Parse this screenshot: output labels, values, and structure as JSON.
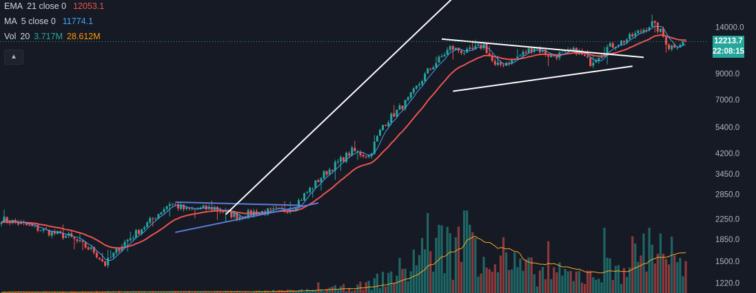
{
  "legend": {
    "ema": {
      "label": "EMA",
      "params": "21 close 0",
      "value": "12053.1",
      "color": "#ef5350"
    },
    "ma": {
      "label": "MA",
      "params": "5 close 0",
      "value": "11774.1",
      "color": "#42a5f5"
    },
    "vol": {
      "label": "Vol",
      "params": "20",
      "value1": "3.717M",
      "value2": "28.612M",
      "color1": "#26a69a",
      "color2": "#ff9800"
    }
  },
  "price_tag": {
    "price": "12213.7",
    "countdown": "22:08:15",
    "color": "#26a69a"
  },
  "colors": {
    "up": "#26a69a",
    "down": "#ef5350",
    "ma": "#42a5f5",
    "ema": "#ef5350",
    "vol_ma": "#ffa726",
    "bg": "#161a25"
  },
  "chart_data": {
    "type": "candlestick",
    "y_scale": "log",
    "y_ticks": [
      "14000.0",
      "12000.0",
      "9000.0",
      "7000.0",
      "5400.0",
      "4200.0",
      "3450.0",
      "2850.0",
      "2250.0",
      "1850.0",
      "1500.0",
      "1220.0"
    ],
    "ylim": [
      1140,
      18500
    ],
    "anchors": [
      [
        0,
        2250
      ],
      [
        10,
        2100
      ],
      [
        16,
        2000
      ],
      [
        24,
        1900
      ],
      [
        33,
        1650
      ],
      [
        37,
        1460
      ],
      [
        43,
        1760
      ],
      [
        52,
        2150
      ],
      [
        60,
        2620
      ],
      [
        66,
        2450
      ],
      [
        76,
        2500
      ],
      [
        84,
        2300
      ],
      [
        90,
        2400
      ],
      [
        100,
        2430
      ],
      [
        104,
        2520
      ],
      [
        115,
        3450
      ],
      [
        125,
        4300
      ],
      [
        131,
        4100
      ],
      [
        136,
        5500
      ],
      [
        145,
        7000
      ],
      [
        152,
        9200
      ],
      [
        160,
        11500
      ],
      [
        166,
        11000
      ],
      [
        172,
        11800
      ],
      [
        176,
        9600
      ],
      [
        182,
        10200
      ],
      [
        190,
        11600
      ],
      [
        196,
        10600
      ],
      [
        205,
        11200
      ],
      [
        210,
        10000
      ],
      [
        216,
        11500
      ],
      [
        222,
        12300
      ],
      [
        228,
        13500
      ],
      [
        232,
        14500
      ],
      [
        235,
        13400
      ],
      [
        238,
        11600
      ],
      [
        244,
        12200
      ]
    ],
    "volume_profile": [
      [
        0,
        0.004
      ],
      [
        30,
        0.005
      ],
      [
        60,
        0.006
      ],
      [
        90,
        0.007
      ],
      [
        110,
        0.012
      ],
      [
        130,
        0.035
      ],
      [
        145,
        0.12
      ],
      [
        152,
        0.25
      ],
      [
        160,
        0.2
      ],
      [
        168,
        0.3
      ],
      [
        175,
        0.15
      ],
      [
        190,
        0.1
      ],
      [
        205,
        0.08
      ],
      [
        215,
        0.1
      ],
      [
        225,
        0.17
      ],
      [
        234,
        0.26
      ],
      [
        244,
        0.1
      ]
    ],
    "trendlines": [
      {
        "name": "triangle-upper",
        "color": "#5b7fd6",
        "p1": [
          62,
          2640
        ],
        "p2": [
          107,
          2560
        ]
      },
      {
        "name": "triangle-lower",
        "color": "#5b7fd6",
        "p1": [
          62,
          1980
        ],
        "p2": [
          113,
          2620
        ]
      },
      {
        "name": "rising-trend",
        "color": "#ffffff",
        "p1": [
          80,
          2350
        ],
        "p2": [
          161,
          18500
        ]
      },
      {
        "name": "pennant-upper",
        "color": "#ffffff",
        "p1": [
          157,
          12500
        ],
        "p2": [
          229,
          10500
        ]
      },
      {
        "name": "pennant-lower",
        "color": "#ffffff",
        "p1": [
          161,
          7600
        ],
        "p2": [
          225,
          9650
        ]
      }
    ]
  }
}
